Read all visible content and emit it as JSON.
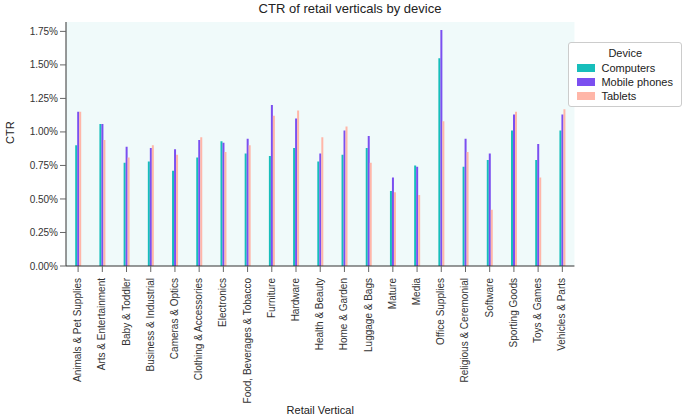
{
  "chart_data": {
    "type": "bar",
    "title": "CTR of retail verticals by device",
    "x_label": "Retail Vertical",
    "y_label": "CTR",
    "categories": [
      "Animals & Pet Supplies",
      "Arts & Entertainment",
      "Baby & Toddler",
      "Business & Industrial",
      "Cameras & Optics",
      "Clothing & Accessories",
      "Electronics",
      "Food, Beverages & Tobacco",
      "Furniture",
      "Hardware",
      "Health & Beauty",
      "Home & Garden",
      "Luggage & Bags",
      "Mature",
      "Media",
      "Office Supplies",
      "Religious & Ceremonial",
      "Software",
      "Sporting Goods",
      "Toys & Games",
      "Vehicles & Parts"
    ],
    "series": [
      {
        "name": "Computers",
        "color": "#17bebb",
        "values": [
          0.9,
          1.06,
          0.77,
          0.78,
          0.71,
          0.81,
          0.93,
          0.84,
          0.82,
          0.88,
          0.78,
          0.83,
          0.88,
          0.56,
          0.75,
          1.55,
          0.74,
          0.79,
          1.01,
          0.79,
          1.01
        ]
      },
      {
        "name": "Mobile phones",
        "color": "#7b4ff0",
        "values": [
          1.15,
          1.06,
          0.89,
          0.88,
          0.87,
          0.94,
          0.92,
          0.95,
          1.2,
          1.1,
          0.84,
          1.01,
          0.97,
          0.66,
          0.74,
          1.76,
          0.95,
          0.84,
          1.13,
          0.91,
          1.13
        ]
      },
      {
        "name": "Tablets",
        "color": "#ffb6a8",
        "values": [
          1.15,
          0.94,
          0.81,
          0.9,
          0.83,
          0.96,
          0.85,
          0.9,
          1.12,
          1.16,
          0.96,
          1.04,
          0.77,
          0.55,
          0.53,
          1.08,
          0.85,
          0.42,
          1.15,
          0.66,
          1.17
        ]
      }
    ],
    "ylim": [
      0,
      1.82
    ],
    "yticks": [
      {
        "value": 0,
        "label": "0.00%"
      },
      {
        "value": 0.25,
        "label": "0.25%"
      },
      {
        "value": 0.5,
        "label": "0.50%"
      },
      {
        "value": 0.75,
        "label": "0.75%"
      },
      {
        "value": 1,
        "label": "1.00%"
      },
      {
        "value": 1.25,
        "label": "1.25%"
      },
      {
        "value": 1.5,
        "label": "1.50%"
      },
      {
        "value": 1.75,
        "label": "1.75%"
      }
    ],
    "grid": false,
    "legend": "upper right",
    "legend_title": "Device"
  }
}
